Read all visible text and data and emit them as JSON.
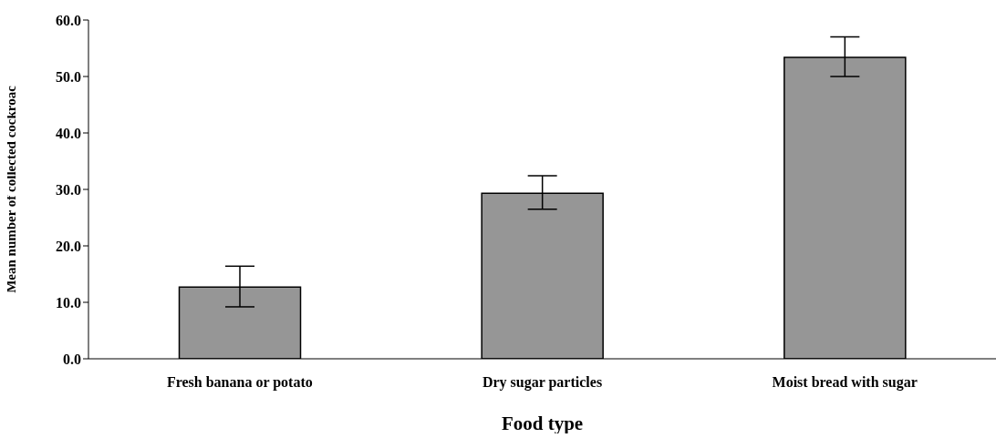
{
  "chart_data": {
    "type": "bar",
    "xlabel": "Food type",
    "ylabel": "Mean number of collected cockroac",
    "categories": [
      "Fresh banana or potato",
      "Dry sugar particles",
      "Moist bread with sugar"
    ],
    "values": [
      12.7,
      29.3,
      53.4
    ],
    "color": "#969696",
    "errors": [
      [
        9.2,
        16.4
      ],
      [
        26.5,
        32.4
      ],
      [
        50.0,
        57.0
      ]
    ],
    "ylim": [
      0,
      60
    ],
    "yticks": [
      {
        "value": 0,
        "label": "0.0"
      },
      {
        "value": 10,
        "label": "10.0"
      },
      {
        "value": 20,
        "label": "20.0"
      },
      {
        "value": 30,
        "label": "30.0"
      },
      {
        "value": 40,
        "label": "40.0"
      },
      {
        "value": 50,
        "label": "50.0"
      },
      {
        "value": 60,
        "label": "60.0"
      }
    ],
    "grid": false,
    "legend": false
  }
}
